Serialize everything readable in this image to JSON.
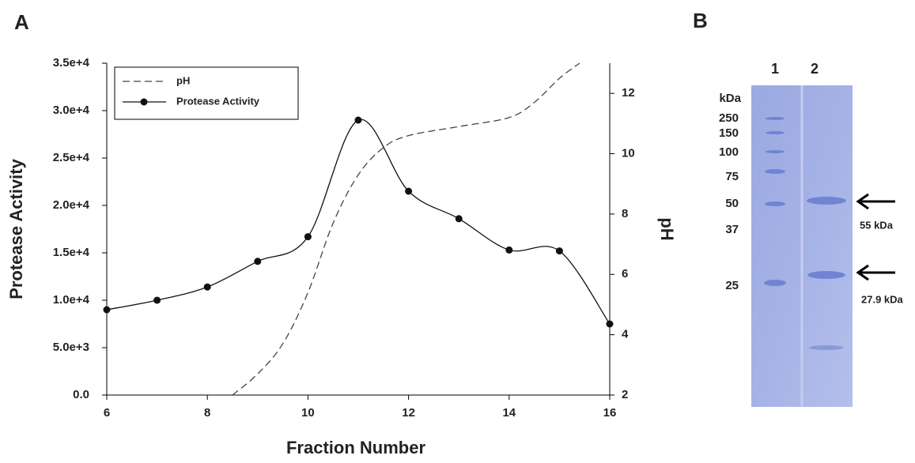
{
  "chart_data": {
    "type": "line",
    "xlabel": "Fraction Number",
    "ylabel": "Protease Activity",
    "y2label": "pH",
    "xlim": [
      6,
      16
    ],
    "xticks": [
      6,
      8,
      10,
      12,
      14,
      16
    ],
    "ylim": [
      0,
      35000
    ],
    "yticks": [
      {
        "value": 0,
        "label": "0.0"
      },
      {
        "value": 5000,
        "label": "5.0e+3"
      },
      {
        "value": 10000,
        "label": "1.0e+4"
      },
      {
        "value": 15000,
        "label": "1.5e+4"
      },
      {
        "value": 20000,
        "label": "2.0e+4"
      },
      {
        "value": 25000,
        "label": "2.5e+4"
      },
      {
        "value": 30000,
        "label": "3.0e+4"
      },
      {
        "value": 35000,
        "label": "3.5e+4"
      }
    ],
    "y2lim": [
      2,
      13
    ],
    "y2ticks": [
      2,
      4,
      6,
      8,
      10,
      12
    ],
    "legend": "upper left",
    "series": [
      {
        "name": "pH",
        "color": "#444444",
        "axis": "y2",
        "dashed": true,
        "x": [
          8.5,
          9,
          9.5,
          10,
          10.5,
          11,
          11.5,
          12,
          13,
          14,
          14.5,
          15,
          15.4
        ],
        "values": [
          2,
          2.7,
          3.7,
          5.4,
          7.7,
          9.3,
          10.2,
          10.6,
          10.9,
          11.2,
          11.7,
          12.5,
          13
        ]
      },
      {
        "name": "Protease Activity",
        "color": "#111111",
        "markers": true,
        "x": [
          6,
          7,
          8,
          9,
          10,
          11,
          12,
          13,
          14,
          15,
          16
        ],
        "values": [
          9000,
          10000,
          11400,
          14100,
          16700,
          29000,
          21500,
          18600,
          15300,
          15200,
          7500
        ]
      }
    ]
  },
  "panel_labels": [
    "A",
    "B"
  ],
  "gel": {
    "lanes": [
      "1",
      "2"
    ],
    "unit": "kDa",
    "markers": [
      "250",
      "150",
      "100",
      "75",
      "50",
      "37",
      "25"
    ],
    "annotations": [
      "55 kDa",
      "27.9 kDa"
    ]
  }
}
